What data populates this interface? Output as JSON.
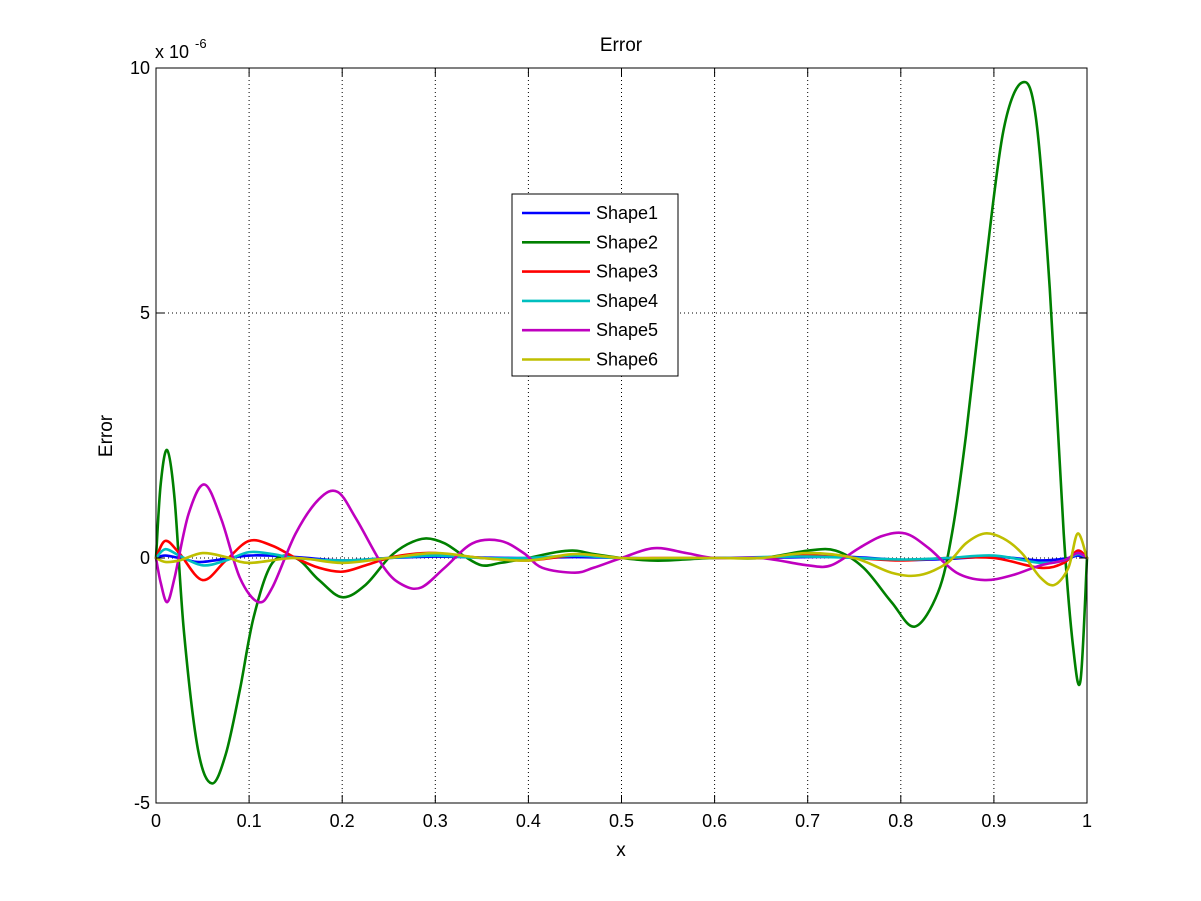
{
  "chart_data": {
    "type": "line",
    "title": "Error",
    "xlabel": "x",
    "ylabel": "Error",
    "y_multiplier": "x 10",
    "y_multiplier_exponent": "-6",
    "xlim": [
      0,
      1
    ],
    "ylim": [
      -5,
      10
    ],
    "xticks": [
      0,
      0.1,
      0.2,
      0.3,
      0.4,
      0.5,
      0.6,
      0.7,
      0.8,
      0.9,
      1
    ],
    "xtick_labels": [
      "0",
      "0.1",
      "0.2",
      "0.3",
      "0.4",
      "0.5",
      "0.6",
      "0.7",
      "0.8",
      "0.9",
      "1"
    ],
    "yticks": [
      -5,
      0,
      5,
      10
    ],
    "ytick_labels": [
      "-5",
      "0",
      "5",
      "10"
    ],
    "grid": true,
    "legend_position": "upper-center",
    "series": [
      {
        "name": "Shape1",
        "color": "#0000ff",
        "x": [
          0,
          0.01,
          0.03,
          0.05,
          0.1,
          0.15,
          0.2,
          0.25,
          0.3,
          0.35,
          0.4,
          0.45,
          0.5,
          0.55,
          0.6,
          0.65,
          0.7,
          0.75,
          0.8,
          0.85,
          0.9,
          0.95,
          0.98,
          0.99,
          1
        ],
        "values": [
          0,
          0.05,
          -0.02,
          -0.08,
          0.05,
          0.02,
          -0.05,
          0,
          0.03,
          0.01,
          0,
          0.02,
          0,
          -0.01,
          0,
          0,
          0.02,
          0.02,
          -0.04,
          -0.02,
          0.03,
          -0.05,
          0,
          0.05,
          0
        ]
      },
      {
        "name": "Shape2",
        "color": "#008000",
        "x": [
          0,
          0.005,
          0.012,
          0.02,
          0.03,
          0.045,
          0.06,
          0.075,
          0.09,
          0.105,
          0.125,
          0.15,
          0.175,
          0.2,
          0.225,
          0.25,
          0.27,
          0.29,
          0.31,
          0.33,
          0.35,
          0.37,
          0.4,
          0.43,
          0.45,
          0.47,
          0.5,
          0.53,
          0.55,
          0.6,
          0.65,
          0.7,
          0.73,
          0.76,
          0.79,
          0.815,
          0.84,
          0.855,
          0.87,
          0.89,
          0.91,
          0.93,
          0.945,
          0.96,
          0.975,
          0.985,
          0.993,
          1
        ],
        "values": [
          0,
          1.5,
          2.2,
          1.2,
          -1.5,
          -3.9,
          -4.6,
          -4.0,
          -2.7,
          -1.2,
          -0.1,
          0,
          -0.45,
          -0.8,
          -0.55,
          0,
          0.28,
          0.4,
          0.3,
          0.05,
          -0.15,
          -0.1,
          0,
          0.12,
          0.15,
          0.08,
          0,
          -0.05,
          -0.05,
          0,
          0,
          0.15,
          0.15,
          -0.2,
          -0.9,
          -1.4,
          -0.7,
          0.5,
          2.5,
          5.8,
          8.7,
          9.7,
          9.0,
          5.5,
          0.5,
          -1.8,
          -2.5,
          0
        ]
      },
      {
        "name": "Shape3",
        "color": "#ff0000",
        "x": [
          0,
          0.01,
          0.025,
          0.05,
          0.075,
          0.1,
          0.125,
          0.15,
          0.175,
          0.2,
          0.225,
          0.25,
          0.275,
          0.3,
          0.35,
          0.4,
          0.45,
          0.5,
          0.55,
          0.6,
          0.65,
          0.7,
          0.75,
          0.8,
          0.85,
          0.9,
          0.95,
          0.975,
          0.99,
          1
        ],
        "values": [
          0,
          0.35,
          0.1,
          -0.45,
          -0.05,
          0.35,
          0.25,
          0,
          -0.2,
          -0.28,
          -0.15,
          0,
          0.08,
          0.1,
          0,
          -0.05,
          0.05,
          0,
          0,
          0,
          0,
          0.05,
          0,
          -0.05,
          0,
          0,
          -0.2,
          -0.1,
          0.15,
          0
        ]
      },
      {
        "name": "Shape4",
        "color": "#00bfbf",
        "x": [
          0,
          0.01,
          0.025,
          0.05,
          0.075,
          0.1,
          0.125,
          0.15,
          0.2,
          0.25,
          0.3,
          0.35,
          0.4,
          0.45,
          0.5,
          0.6,
          0.7,
          0.8,
          0.85,
          0.9,
          0.95,
          0.975,
          0.99,
          1
        ],
        "values": [
          0,
          0.18,
          0.05,
          -0.15,
          -0.05,
          0.12,
          0.08,
          0,
          -0.05,
          0,
          0.05,
          0,
          0,
          0.05,
          0,
          0,
          0.03,
          -0.03,
          0,
          0.05,
          -0.1,
          -0.05,
          0.08,
          0
        ]
      },
      {
        "name": "Shape5",
        "color": "#bf00bf",
        "x": [
          0,
          0.005,
          0.012,
          0.02,
          0.035,
          0.052,
          0.07,
          0.09,
          0.11,
          0.125,
          0.15,
          0.175,
          0.195,
          0.215,
          0.245,
          0.265,
          0.285,
          0.31,
          0.34,
          0.37,
          0.395,
          0.415,
          0.45,
          0.47,
          0.5,
          0.535,
          0.57,
          0.6,
          0.65,
          0.7,
          0.725,
          0.755,
          0.78,
          0.805,
          0.83,
          0.86,
          0.89,
          0.92,
          0.95,
          0.975,
          0.99,
          1
        ],
        "values": [
          0,
          -0.5,
          -0.9,
          -0.4,
          0.9,
          1.5,
          0.8,
          -0.4,
          -0.9,
          -0.6,
          0.5,
          1.2,
          1.35,
          0.8,
          -0.2,
          -0.55,
          -0.6,
          -0.2,
          0.3,
          0.35,
          0.1,
          -0.2,
          -0.3,
          -0.2,
          0,
          0.2,
          0.1,
          0,
          0,
          -0.15,
          -0.15,
          0.2,
          0.45,
          0.5,
          0.2,
          -0.3,
          -0.45,
          -0.35,
          -0.15,
          -0.05,
          0.1,
          0
        ]
      },
      {
        "name": "Shape6",
        "color": "#bfbf00",
        "x": [
          0,
          0.01,
          0.025,
          0.05,
          0.075,
          0.1,
          0.15,
          0.2,
          0.25,
          0.3,
          0.35,
          0.4,
          0.45,
          0.5,
          0.55,
          0.6,
          0.65,
          0.7,
          0.75,
          0.79,
          0.82,
          0.85,
          0.87,
          0.89,
          0.91,
          0.93,
          0.95,
          0.965,
          0.98,
          0.99,
          1
        ],
        "values": [
          0,
          -0.08,
          -0.05,
          0.1,
          0.02,
          -0.1,
          0,
          -0.1,
          0,
          0.1,
          0,
          -0.05,
          0.08,
          0,
          0,
          0,
          0,
          0.1,
          0,
          -0.3,
          -0.35,
          -0.1,
          0.3,
          0.5,
          0.4,
          0.1,
          -0.4,
          -0.55,
          -0.2,
          0.5,
          0
        ]
      }
    ]
  }
}
